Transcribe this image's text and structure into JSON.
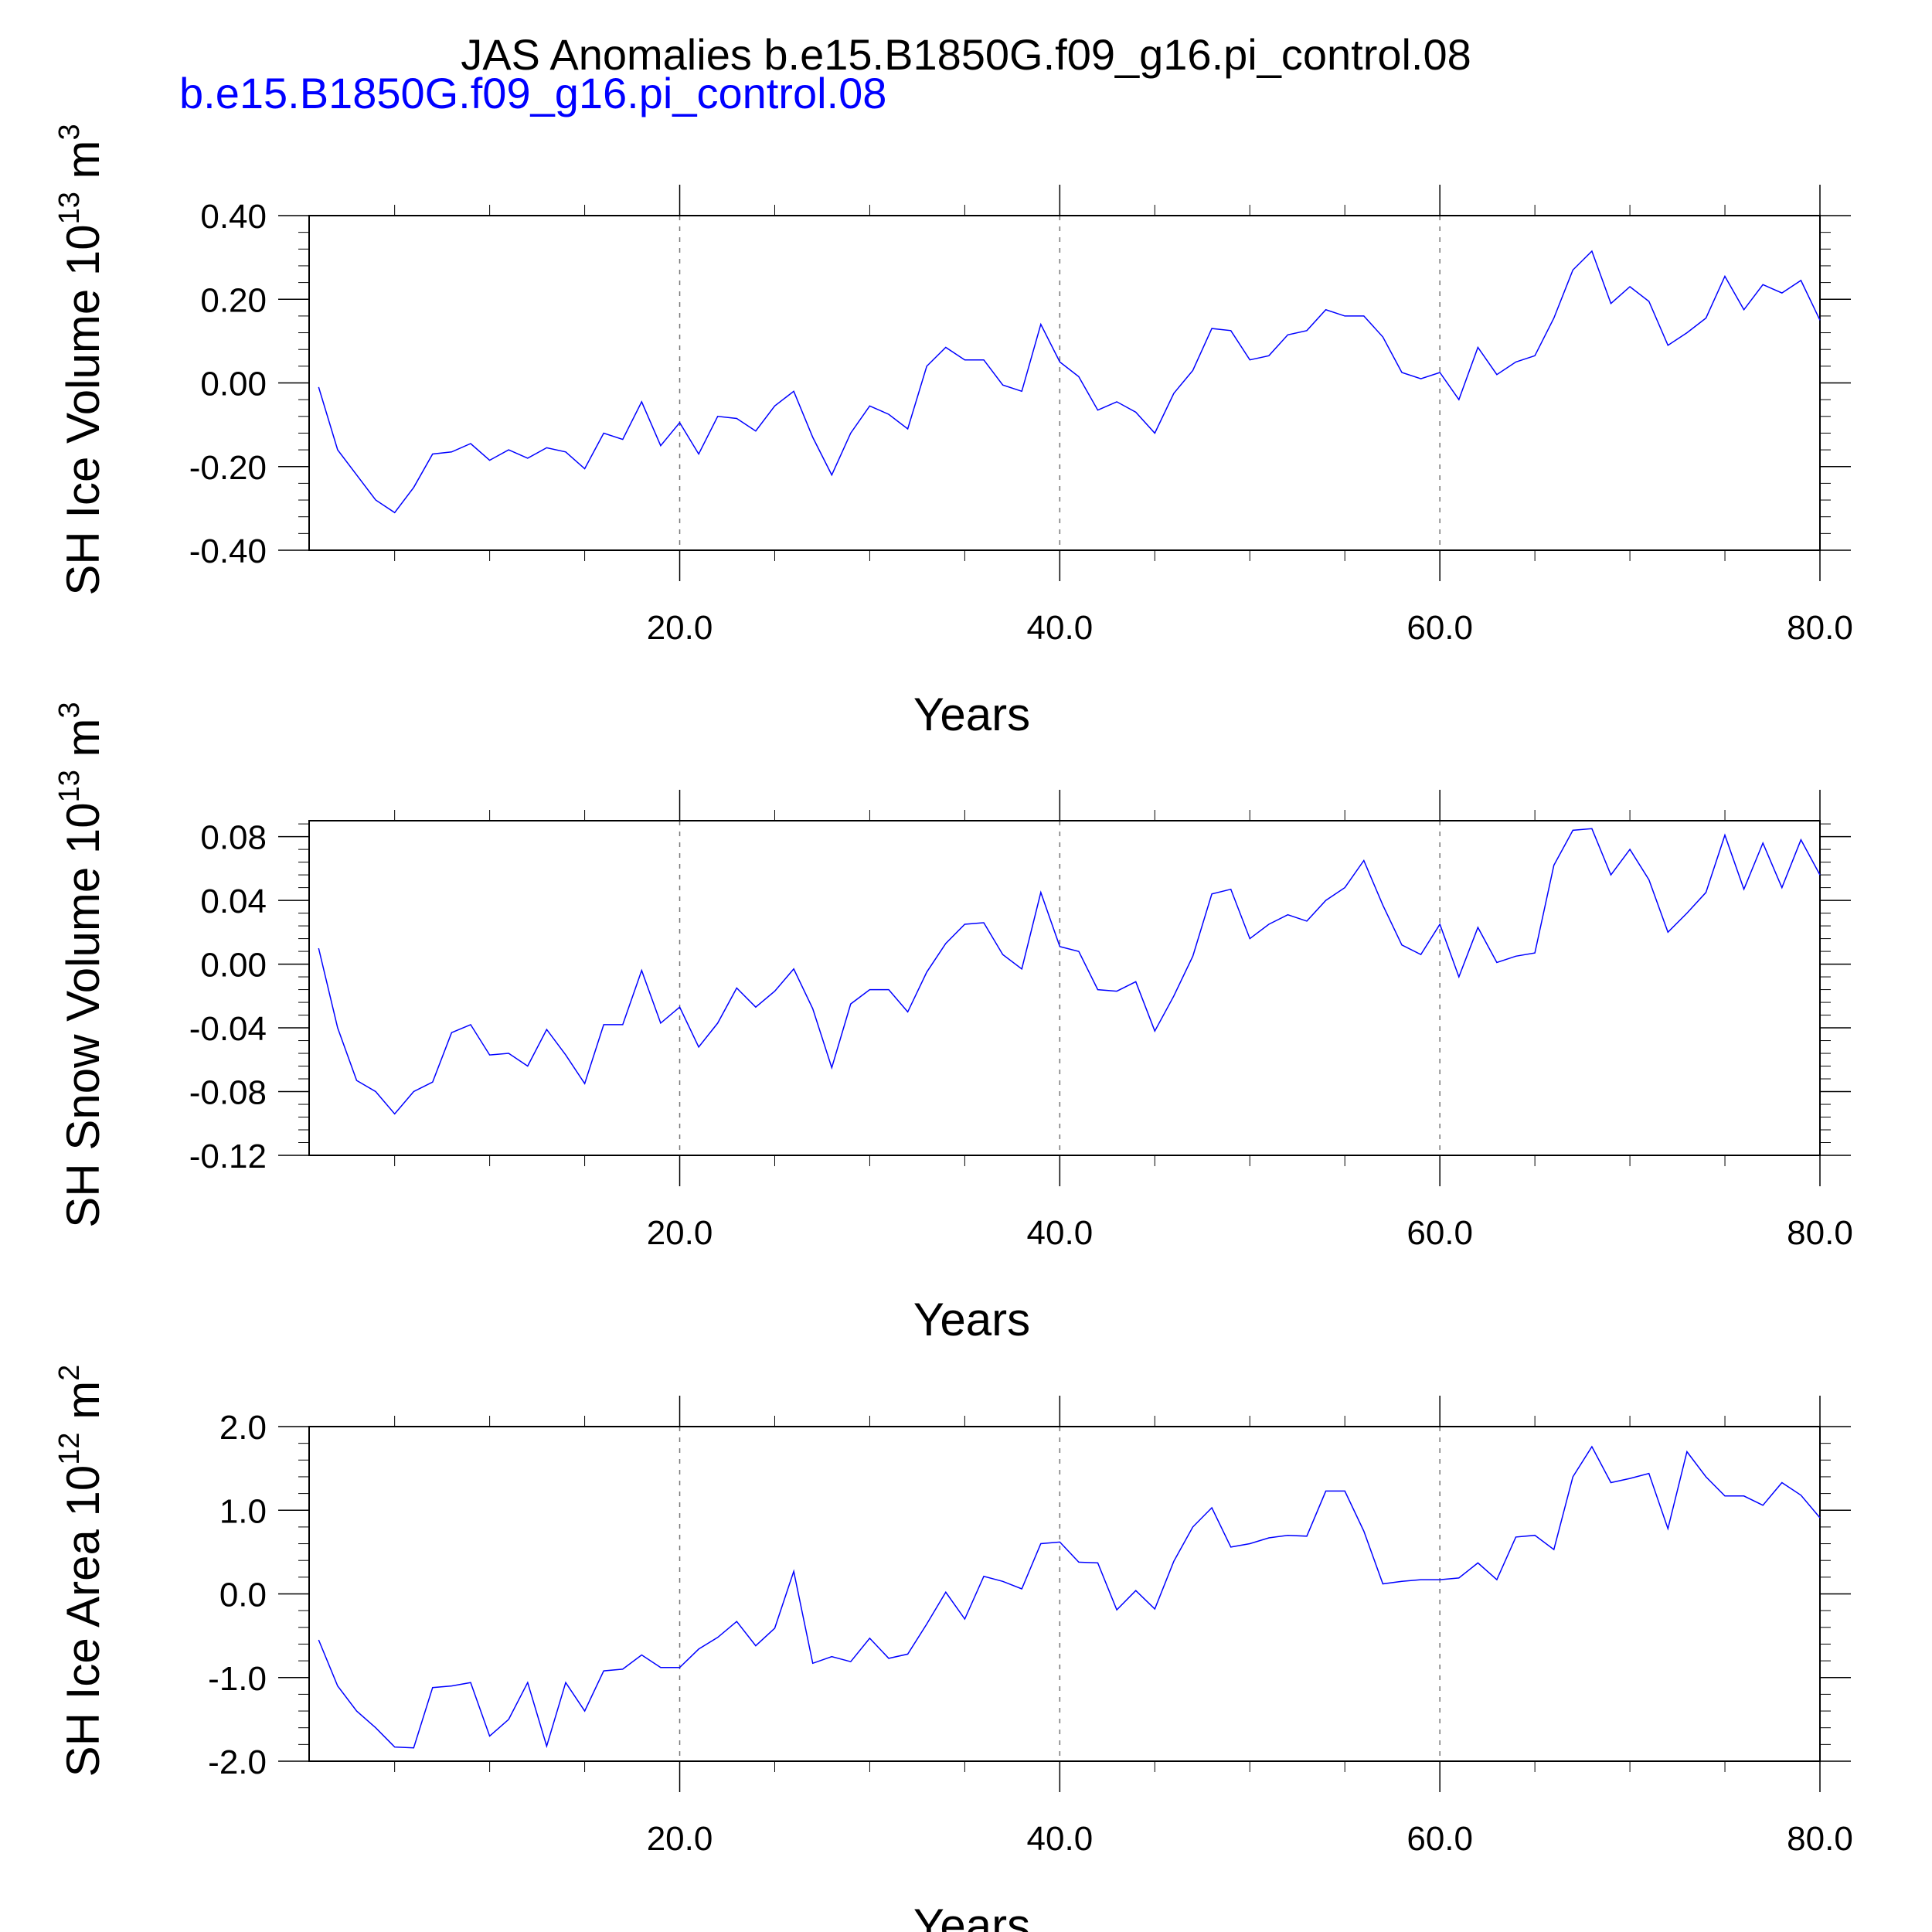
{
  "figure": {
    "title": "JAS Anomalies b.e15.B1850G.f09_g16.pi_control.08",
    "subtitle": "b.e15.B1850G.f09_g16.pi_control.08"
  },
  "chart_data": [
    {
      "type": "line",
      "ylabel_main": "SH Ice Volume 10",
      "ylabel_exp": "13",
      "ylabel_unit": " m",
      "ylabel_unit_exp": "3",
      "xlabel": "Years",
      "xlim": [
        0.5,
        80.0
      ],
      "ylim": [
        -0.4,
        0.4
      ],
      "yticks": [
        -0.4,
        -0.2,
        0.0,
        0.2,
        0.4
      ],
      "ytick_labels": [
        "-0.40",
        "-0.20",
        "0.00",
        "0.20",
        "0.40"
      ],
      "xticks": [
        20,
        40,
        60,
        80
      ],
      "xtick_labels": [
        "20.0",
        "40.0",
        "60.0",
        "80.0"
      ],
      "grid_x": [
        20,
        40,
        60
      ],
      "color": "#0000ff",
      "x": [
        1,
        2,
        3,
        4,
        5,
        6,
        7,
        8,
        9,
        10,
        11,
        12,
        13,
        14,
        15,
        16,
        17,
        18,
        19,
        20,
        21,
        22,
        23,
        24,
        25,
        26,
        27,
        28,
        29,
        30,
        31,
        32,
        33,
        34,
        35,
        36,
        37,
        38,
        39,
        40,
        41,
        42,
        43,
        44,
        45,
        46,
        47,
        48,
        49,
        50,
        51,
        52,
        53,
        54,
        55,
        56,
        57,
        58,
        59,
        60,
        61,
        62,
        63,
        64,
        65,
        66,
        67,
        68,
        69,
        70,
        71,
        72,
        73,
        74,
        75,
        76,
        77,
        78,
        79,
        80
      ],
      "values": [
        -0.01,
        -0.16,
        -0.22,
        -0.28,
        -0.31,
        -0.25,
        -0.17,
        -0.165,
        -0.145,
        -0.185,
        -0.16,
        -0.18,
        -0.155,
        -0.165,
        -0.205,
        -0.12,
        -0.135,
        -0.045,
        -0.15,
        -0.095,
        -0.17,
        -0.08,
        -0.085,
        -0.115,
        -0.055,
        -0.02,
        -0.13,
        -0.22,
        -0.12,
        -0.055,
        -0.075,
        -0.11,
        0.04,
        0.085,
        0.055,
        0.055,
        -0.005,
        -0.02,
        0.14,
        0.05,
        0.015,
        -0.065,
        -0.045,
        -0.07,
        -0.12,
        -0.025,
        0.03,
        0.13,
        0.125,
        0.055,
        0.065,
        0.115,
        0.125,
        0.175,
        0.16,
        0.16,
        0.11,
        0.025,
        0.01,
        0.025,
        -0.04,
        0.085,
        0.02,
        0.05,
        0.065,
        0.155,
        0.27,
        0.315,
        0.19,
        0.23,
        0.195,
        0.09,
        0.12,
        0.155,
        0.255,
        0.175,
        0.235,
        0.215,
        0.245,
        0.15
      ]
    },
    {
      "type": "line",
      "ylabel_main": "SH Snow Volume 10",
      "ylabel_exp": "13",
      "ylabel_unit": " m",
      "ylabel_unit_exp": "3",
      "xlabel": "Years",
      "xlim": [
        0.5,
        80.0
      ],
      "ylim": [
        -0.12,
        0.09
      ],
      "yticks": [
        -0.12,
        -0.08,
        -0.04,
        0.0,
        0.04,
        0.08
      ],
      "ytick_labels": [
        "-0.12",
        "-0.08",
        "-0.04",
        "0.00",
        "0.04",
        "0.08"
      ],
      "xticks": [
        20,
        40,
        60,
        80
      ],
      "xtick_labels": [
        "20.0",
        "40.0",
        "60.0",
        "80.0"
      ],
      "grid_x": [
        20,
        40,
        60
      ],
      "color": "#0000ff",
      "x": [
        1,
        2,
        3,
        4,
        5,
        6,
        7,
        8,
        9,
        10,
        11,
        12,
        13,
        14,
        15,
        16,
        17,
        18,
        19,
        20,
        21,
        22,
        23,
        24,
        25,
        26,
        27,
        28,
        29,
        30,
        31,
        32,
        33,
        34,
        35,
        36,
        37,
        38,
        39,
        40,
        41,
        42,
        43,
        44,
        45,
        46,
        47,
        48,
        49,
        50,
        51,
        52,
        53,
        54,
        55,
        56,
        57,
        58,
        59,
        60,
        61,
        62,
        63,
        64,
        65,
        66,
        67,
        68,
        69,
        70,
        71,
        72,
        73,
        74,
        75,
        76,
        77,
        78,
        79,
        80
      ],
      "values": [
        0.01,
        -0.04,
        -0.073,
        -0.08,
        -0.094,
        -0.08,
        -0.074,
        -0.043,
        -0.038,
        -0.057,
        -0.056,
        -0.064,
        -0.041,
        -0.057,
        -0.075,
        -0.038,
        -0.038,
        -0.004,
        -0.037,
        -0.027,
        -0.052,
        -0.037,
        -0.015,
        -0.027,
        -0.017,
        -0.003,
        -0.028,
        -0.065,
        -0.025,
        -0.016,
        -0.016,
        -0.03,
        -0.005,
        0.013,
        0.025,
        0.026,
        0.006,
        -0.003,
        0.045,
        0.011,
        0.008,
        -0.016,
        -0.017,
        -0.011,
        -0.042,
        -0.02,
        0.005,
        0.044,
        0.047,
        0.016,
        0.025,
        0.031,
        0.027,
        0.04,
        0.048,
        0.065,
        0.037,
        0.012,
        0.006,
        0.025,
        -0.008,
        0.023,
        0.001,
        0.005,
        0.007,
        0.062,
        0.084,
        0.085,
        0.056,
        0.072,
        0.053,
        0.02,
        0.032,
        0.045,
        0.081,
        0.047,
        0.076,
        0.048,
        0.078,
        0.056
      ]
    },
    {
      "type": "line",
      "ylabel_main": "SH Ice Area 10",
      "ylabel_exp": "12",
      "ylabel_unit": " m",
      "ylabel_unit_exp": "2",
      "xlabel": "Years",
      "xlim": [
        0.5,
        80.0
      ],
      "ylim": [
        -2.0,
        2.0
      ],
      "yticks": [
        -2.0,
        -1.0,
        0.0,
        1.0,
        2.0
      ],
      "ytick_labels": [
        "-2.0",
        "-1.0",
        "0.0",
        "1.0",
        "2.0"
      ],
      "xticks": [
        20,
        40,
        60,
        80
      ],
      "xtick_labels": [
        "20.0",
        "40.0",
        "60.0",
        "80.0"
      ],
      "grid_x": [
        20,
        40,
        60
      ],
      "color": "#0000ff",
      "x": [
        1,
        2,
        3,
        4,
        5,
        6,
        7,
        8,
        9,
        10,
        11,
        12,
        13,
        14,
        15,
        16,
        17,
        18,
        19,
        20,
        21,
        22,
        23,
        24,
        25,
        26,
        27,
        28,
        29,
        30,
        31,
        32,
        33,
        34,
        35,
        36,
        37,
        38,
        39,
        40,
        41,
        42,
        43,
        44,
        45,
        46,
        47,
        48,
        49,
        50,
        51,
        52,
        53,
        54,
        55,
        56,
        57,
        58,
        59,
        60,
        61,
        62,
        63,
        64,
        65,
        66,
        67,
        68,
        69,
        70,
        71,
        72,
        73,
        74,
        75,
        76,
        77,
        78,
        79,
        80
      ],
      "values": [
        -0.55,
        -1.1,
        -1.4,
        -1.6,
        -1.83,
        -1.84,
        -1.12,
        -1.1,
        -1.06,
        -1.7,
        -1.5,
        -1.06,
        -1.82,
        -1.06,
        -1.4,
        -0.92,
        -0.9,
        -0.73,
        -0.88,
        -0.88,
        -0.66,
        -0.52,
        -0.33,
        -0.62,
        -0.41,
        0.27,
        -0.83,
        -0.75,
        -0.81,
        -0.53,
        -0.77,
        -0.72,
        -0.36,
        0.02,
        -0.3,
        0.21,
        0.15,
        0.06,
        0.6,
        0.62,
        0.38,
        0.37,
        -0.19,
        0.04,
        -0.18,
        0.39,
        0.8,
        1.03,
        0.56,
        0.6,
        0.67,
        0.7,
        0.69,
        1.23,
        1.23,
        0.75,
        0.12,
        0.15,
        0.17,
        0.17,
        0.19,
        0.37,
        0.17,
        0.68,
        0.7,
        0.53,
        1.4,
        1.76,
        1.33,
        1.38,
        1.44,
        0.78,
        1.7,
        1.4,
        1.17,
        1.17,
        1.06,
        1.33,
        1.18,
        0.91
      ]
    }
  ]
}
